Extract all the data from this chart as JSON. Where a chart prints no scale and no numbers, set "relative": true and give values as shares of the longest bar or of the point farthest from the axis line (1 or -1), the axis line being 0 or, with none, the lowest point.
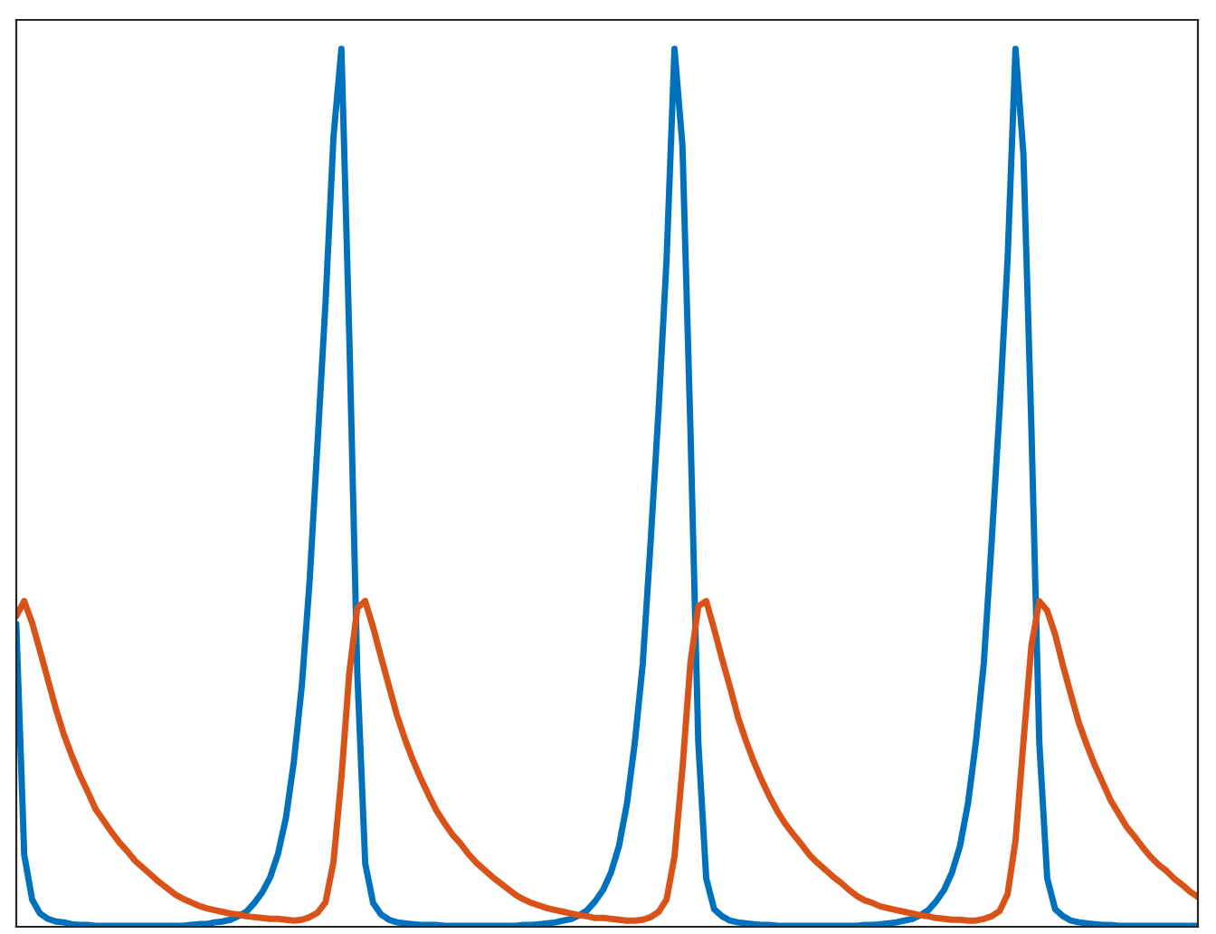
{
  "chart_data": {
    "type": "line",
    "relative": true,
    "categories": [
      null,
      null,
      null,
      null,
      null,
      null,
      null,
      null,
      null,
      null,
      null,
      null,
      null,
      null,
      null,
      null,
      null,
      null,
      null,
      null,
      null,
      null,
      null,
      null,
      null,
      null,
      null,
      null,
      null,
      null,
      null,
      null,
      null,
      null,
      null,
      null,
      null,
      null,
      null,
      null,
      null,
      null,
      null,
      null,
      null,
      null,
      null,
      null,
      null,
      null,
      null,
      null,
      null,
      null,
      null,
      null,
      null,
      null,
      null,
      null,
      null,
      null,
      null,
      null,
      null,
      null,
      null,
      null,
      null,
      null,
      null,
      null,
      null,
      null,
      null,
      null,
      null,
      null,
      null,
      null,
      null,
      null,
      null,
      null,
      null,
      null,
      null,
      null,
      null,
      null,
      null,
      null,
      null,
      null,
      null,
      null,
      null,
      null,
      null,
      null,
      null,
      null,
      null,
      null,
      null,
      null,
      null,
      null,
      null,
      null,
      null,
      null,
      null,
      null,
      null,
      null,
      null,
      null,
      null,
      null,
      null,
      null,
      null,
      null,
      null,
      null,
      null,
      null,
      null,
      null,
      null,
      null,
      null,
      null,
      null,
      null,
      null,
      null,
      null,
      null,
      null,
      null,
      null,
      null,
      null,
      null,
      null,
      null,
      null,
      null
    ],
    "series": [
      {
        "color": "#0072bd",
        "values": [
          0.345,
          0.082,
          0.031,
          0.015,
          0.009,
          0.006,
          0.005,
          0.003,
          0.002,
          0.002,
          0.001,
          0.001,
          0.001,
          0.001,
          0.001,
          0.001,
          0.001,
          0.001,
          0.001,
          0.001,
          0.001,
          0.001,
          0.002,
          0.003,
          0.003,
          0.005,
          0.006,
          0.008,
          0.012,
          0.017,
          0.027,
          0.039,
          0.056,
          0.083,
          0.124,
          0.188,
          0.274,
          0.395,
          0.553,
          0.712,
          0.9,
          1,
          0.67,
          0.29,
          0.072,
          0.027,
          0.014,
          0.008,
          0.005,
          0.004,
          0.003,
          0.002,
          0.002,
          0.002,
          0.001,
          0.001,
          0.001,
          0.001,
          0.001,
          0.001,
          0.001,
          0.001,
          0.001,
          0.001,
          0.002,
          0.002,
          0.003,
          0.004,
          0.005,
          0.007,
          0.009,
          0.013,
          0.019,
          0.029,
          0.042,
          0.062,
          0.092,
          0.14,
          0.21,
          0.3,
          0.44,
          0.59,
          0.76,
          1,
          0.89,
          0.57,
          0.21,
          0.055,
          0.02,
          0.012,
          0.007,
          0.005,
          0.004,
          0.003,
          0.002,
          0.002,
          0.001,
          0.001,
          0.001,
          0.001,
          0.001,
          0.001,
          0.001,
          0.001,
          0.001,
          0.001,
          0.001,
          0.002,
          0.002,
          0.003,
          0.004,
          0.005,
          0.007,
          0.009,
          0.013,
          0.019,
          0.029,
          0.042,
          0.062,
          0.092,
          0.14,
          0.21,
          0.3,
          0.44,
          0.59,
          0.76,
          1,
          0.88,
          0.57,
          0.21,
          0.055,
          0.02,
          0.012,
          0.007,
          0.005,
          0.004,
          0.003,
          0.002,
          0.002,
          0.001,
          0.001,
          0.001,
          0.001,
          0.001,
          0.001,
          0.001,
          0.001,
          0.001,
          0.001,
          0.001
        ]
      },
      {
        "color": "#d95319",
        "values": [
          0.354,
          0.371,
          0.346,
          0.314,
          0.281,
          0.248,
          0.219,
          0.195,
          0.173,
          0.154,
          0.134,
          0.121,
          0.108,
          0.096,
          0.086,
          0.075,
          0.067,
          0.059,
          0.051,
          0.044,
          0.037,
          0.032,
          0.028,
          0.024,
          0.021,
          0.019,
          0.017,
          0.015,
          0.014,
          0.012,
          0.011,
          0.01,
          0.009,
          0.009,
          0.008,
          0.007,
          0.008,
          0.011,
          0.016,
          0.028,
          0.074,
          0.17,
          0.29,
          0.363,
          0.371,
          0.341,
          0.307,
          0.274,
          0.241,
          0.214,
          0.19,
          0.169,
          0.15,
          0.132,
          0.118,
          0.105,
          0.095,
          0.083,
          0.073,
          0.065,
          0.057,
          0.05,
          0.043,
          0.036,
          0.031,
          0.027,
          0.024,
          0.021,
          0.019,
          0.017,
          0.015,
          0.013,
          0.012,
          0.01,
          0.01,
          0.009,
          0.008,
          0.007,
          0.007,
          0.008,
          0.011,
          0.017,
          0.031,
          0.08,
          0.18,
          0.3,
          0.365,
          0.371,
          0.339,
          0.305,
          0.273,
          0.239,
          0.212,
          0.188,
          0.167,
          0.148,
          0.131,
          0.117,
          0.105,
          0.094,
          0.082,
          0.073,
          0.065,
          0.057,
          0.05,
          0.042,
          0.035,
          0.03,
          0.027,
          0.023,
          0.021,
          0.019,
          0.017,
          0.015,
          0.013,
          0.012,
          0.01,
          0.009,
          0.008,
          0.008,
          0.007,
          0.007,
          0.009,
          0.012,
          0.018,
          0.037,
          0.098,
          0.21,
          0.32,
          0.371,
          0.36,
          0.333,
          0.297,
          0.264,
          0.232,
          0.207,
          0.184,
          0.164,
          0.144,
          0.129,
          0.114,
          0.103,
          0.091,
          0.08,
          0.071,
          0.064,
          0.055,
          0.048,
          0.04,
          0.034
        ]
      }
    ]
  }
}
